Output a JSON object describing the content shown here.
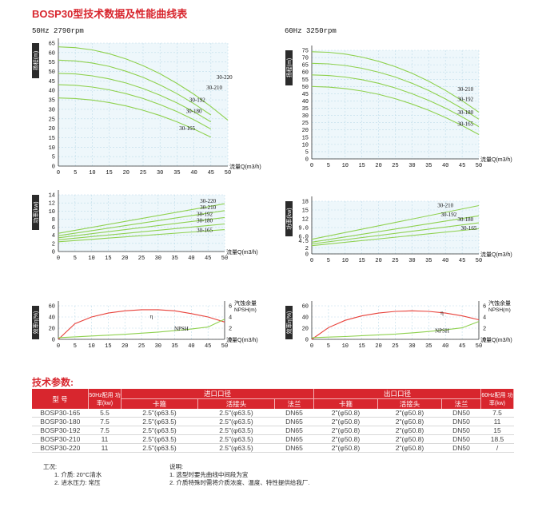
{
  "page": {
    "title": "BOSP30型技术数据及性能曲线表",
    "left_hz": "50Hz  2790rpm",
    "right_hz": "60Hz  3250rpm",
    "section_title": "技术参数:"
  },
  "chart_data": [
    {
      "id": "l1",
      "type": "line",
      "x": [
        0,
        5,
        10,
        15,
        20,
        25,
        30,
        35,
        40,
        45,
        50
      ],
      "ylabel": "扬程(m)",
      "xlabel": "流量Q(m3/h)",
      "ylim": [
        0,
        65
      ],
      "yticks": [
        0,
        5,
        10,
        15,
        20,
        25,
        30,
        35,
        40,
        45,
        50,
        55,
        60,
        65
      ],
      "xlim": [
        0,
        50
      ],
      "series": [
        {
          "name": "30-220",
          "color": "#8fd14f",
          "values": [
            63,
            62.6,
            61.4,
            59.4,
            56.6,
            53.1,
            48.8,
            43.7,
            38,
            31.5,
            24.3
          ],
          "xmax": 50
        },
        {
          "name": "30-210",
          "color": "#8fd14f",
          "values": [
            56,
            55.6,
            54.5,
            52.7,
            50.1,
            46.9,
            42.9,
            38.3,
            33,
            27,
            20.4
          ],
          "xmax": 49
        },
        {
          "name": "30-192",
          "color": "#8fd14f",
          "values": [
            49,
            48.7,
            47.7,
            46.1,
            43.9,
            41,
            37.5,
            33.4,
            28.7,
            23.4,
            17.5
          ],
          "xmax": 48
        },
        {
          "name": "30-180",
          "color": "#8fd14f",
          "values": [
            43,
            42.7,
            41.8,
            40.3,
            38.3,
            35.7,
            32.5,
            28.8,
            24.5,
            19.6,
            14.2
          ],
          "xmax": 47
        },
        {
          "name": "30-165",
          "color": "#8fd14f",
          "values": [
            36,
            35.7,
            34.9,
            33.6,
            31.8,
            29.5,
            26.7,
            23.4,
            19.6,
            15.3,
            10.5
          ],
          "xmax": 45
        }
      ]
    },
    {
      "id": "r1",
      "type": "line",
      "x": [
        0,
        5,
        10,
        15,
        20,
        25,
        30,
        35,
        40,
        45,
        50
      ],
      "ylabel": "扬程(m)",
      "xlabel": "流量Q(m3/h)",
      "ylim": [
        0,
        75
      ],
      "yticks": [
        0,
        5,
        10,
        15,
        20,
        25,
        30,
        35,
        40,
        45,
        50,
        55,
        60,
        65,
        70,
        75
      ],
      "xlim": [
        0,
        50
      ],
      "series": [
        {
          "name": "30-210",
          "color": "#8fd14f",
          "values": [
            74,
            73.6,
            72.4,
            70.3,
            67.4,
            63.7,
            59.1,
            53.6,
            47.3,
            40.2,
            32.2
          ],
          "xmax": 50
        },
        {
          "name": "30-192",
          "color": "#8fd14f",
          "values": [
            66,
            65.6,
            64.5,
            62.6,
            59.9,
            56.5,
            52.2,
            47.2,
            41.4,
            34.8,
            27.4
          ],
          "xmax": 50
        },
        {
          "name": "30-180",
          "color": "#8fd14f",
          "values": [
            58,
            57.6,
            56.5,
            54.7,
            52.2,
            49,
            45,
            40.4,
            35.1,
            29,
            22.3
          ],
          "xmax": 50
        },
        {
          "name": "30-165",
          "color": "#8fd14f",
          "values": [
            50,
            49.6,
            48.6,
            46.9,
            44.6,
            41.6,
            37.9,
            33.6,
            28.6,
            23,
            16.8
          ],
          "xmax": 50
        }
      ]
    },
    {
      "id": "l2",
      "type": "line",
      "x": [
        0,
        50
      ],
      "ylabel": "功率(kw)",
      "xlabel": "流量Q(m3/h)",
      "ylim": [
        0,
        14
      ],
      "yticks": [
        0,
        2,
        4,
        6,
        8,
        10,
        12,
        14
      ],
      "xlim": [
        0,
        50
      ],
      "series": [
        {
          "name": "30-220",
          "color": "#8fd14f",
          "values": [
            4.5,
            11.8
          ]
        },
        {
          "name": "30-210",
          "color": "#8fd14f",
          "values": [
            3.9,
            10.1
          ]
        },
        {
          "name": "30-192",
          "color": "#8fd14f",
          "values": [
            3.4,
            8.4
          ]
        },
        {
          "name": "30-180",
          "color": "#8fd14f",
          "values": [
            2.9,
            6.8
          ]
        },
        {
          "name": "30-165",
          "color": "#8fd14f",
          "values": [
            2.4,
            5.4
          ]
        }
      ]
    },
    {
      "id": "r2",
      "type": "line",
      "x": [
        0,
        50
      ],
      "ylabel": "功率(kw)",
      "xlabel": "流量Q(m3/h)",
      "ylim": [
        0,
        18
      ],
      "yticks": [
        0,
        2,
        4.5,
        6,
        9,
        12,
        15,
        18
      ],
      "ytick_labels": [
        "0",
        "2",
        "4.5",
        "6.0",
        "9.0",
        "12",
        "15",
        "18"
      ],
      "xlim": [
        0,
        50
      ],
      "series": [
        {
          "name": "30-210",
          "color": "#8fd14f",
          "values": [
            5,
            16.5
          ]
        },
        {
          "name": "30-192",
          "color": "#8fd14f",
          "values": [
            4,
            13
          ]
        },
        {
          "name": "30-180",
          "color": "#8fd14f",
          "values": [
            3.4,
            10.6
          ]
        },
        {
          "name": "30-165",
          "color": "#8fd14f",
          "values": [
            2.8,
            8.6
          ]
        }
      ]
    },
    {
      "id": "l3",
      "type": "line",
      "x": [
        0,
        5,
        10,
        15,
        20,
        25,
        30,
        35,
        40,
        45,
        50
      ],
      "ylabel": "效率η(%)",
      "y2label": "汽蚀余量 NPSH(m)",
      "xlabel": "流量Q(m3/h)",
      "ylim": [
        0,
        60
      ],
      "yticks": [
        0,
        20,
        40,
        60
      ],
      "y2lim": [
        0,
        6
      ],
      "y2ticks": [
        0,
        2,
        4,
        6
      ],
      "xlim": [
        0,
        50
      ],
      "series": [
        {
          "name": "η",
          "color": "#e8413a",
          "axis": "left",
          "values": [
            0,
            28,
            40,
            47,
            51,
            53,
            53,
            51,
            46,
            40,
            31
          ]
        },
        {
          "name": "NPSH",
          "color": "#8fd14f",
          "axis": "right",
          "values": [
            0.3,
            0.45,
            0.6,
            0.75,
            0.9,
            1.1,
            1.3,
            1.55,
            1.85,
            2.2,
            3.6
          ]
        }
      ]
    },
    {
      "id": "r3",
      "type": "line",
      "x": [
        0,
        5,
        10,
        15,
        20,
        25,
        30,
        35,
        40,
        45,
        50
      ],
      "ylabel": "效率η(%)",
      "y2label": "汽蚀余量 NPSH(m)",
      "xlabel": "流量Q(m3/h)",
      "ylim": [
        0,
        60
      ],
      "yticks": [
        0,
        20,
        40,
        60
      ],
      "y2lim": [
        0,
        6
      ],
      "y2ticks": [
        0,
        2,
        4,
        6
      ],
      "xlim": [
        0,
        50
      ],
      "series": [
        {
          "name": "η",
          "color": "#e8413a",
          "axis": "left",
          "values": [
            0,
            21,
            34,
            42,
            47,
            50,
            51,
            50,
            47,
            42,
            35
          ]
        },
        {
          "name": "NPSH",
          "color": "#8fd14f",
          "axis": "right",
          "values": [
            0.3,
            0.4,
            0.5,
            0.65,
            0.8,
            0.95,
            1.15,
            1.4,
            1.7,
            2.05,
            3.2
          ]
        }
      ]
    }
  ],
  "table": {
    "h_model": "型  号",
    "h_power50": "50Hz配用 功率(kw)",
    "h_inlet": "进口口径",
    "h_outlet": "出口口径",
    "h_power60": "60Hz配用 功率(kw)",
    "sub": [
      "卡箍",
      "活接头",
      "法兰",
      "卡箍",
      "活接头",
      "法兰"
    ],
    "rows": [
      [
        "BOSP30-165",
        "5.5",
        "2.5\"(φ63.5)",
        "2.5\"(φ63.5)",
        "DN65",
        "2\"(φ50.8)",
        "2\"(φ50.8)",
        "DN50",
        "7.5"
      ],
      [
        "BOSP30-180",
        "7.5",
        "2.5\"(φ63.5)",
        "2.5\"(φ63.5)",
        "DN65",
        "2\"(φ50.8)",
        "2\"(φ50.8)",
        "DN50",
        "11"
      ],
      [
        "BOSP30-192",
        "7.5",
        "2.5\"(φ63.5)",
        "2.5\"(φ63.5)",
        "DN65",
        "2\"(φ50.8)",
        "2\"(φ50.8)",
        "DN50",
        "15"
      ],
      [
        "BOSP30-210",
        "11",
        "2.5\"(φ63.5)",
        "2.5\"(φ63.5)",
        "DN65",
        "2\"(φ50.8)",
        "2\"(φ50.8)",
        "DN50",
        "18.5"
      ],
      [
        "BOSP30-220",
        "11",
        "2.5\"(φ63.5)",
        "2.5\"(φ63.5)",
        "DN65",
        "2\"(φ50.8)",
        "2\"(φ50.8)",
        "DN50",
        "/"
      ]
    ]
  },
  "notes": {
    "left_title": "工况:",
    "left_1": "1. 介质: 20°C清水",
    "left_2": "2. 进水压力: 常压",
    "right_title": "说明:",
    "right_1": "1. 选型时要先曲线中间段为宜",
    "right_2": "2. 介质特殊时需将介质浓度、温度、特性提供给我厂."
  }
}
